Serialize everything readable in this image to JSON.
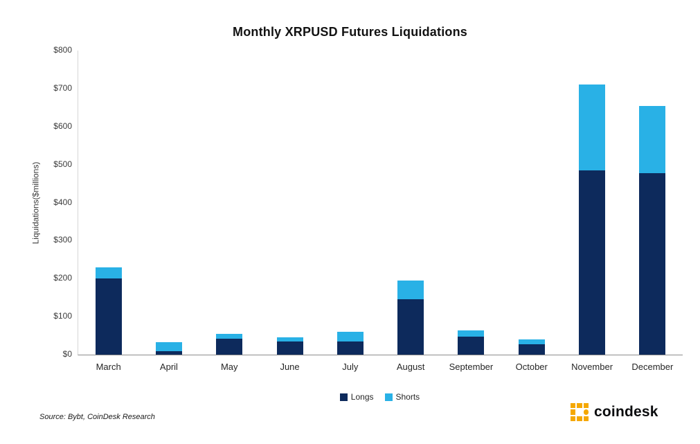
{
  "chart_data": {
    "type": "bar",
    "stacked": true,
    "title": "Monthly XRPUSD Futures Liquidations",
    "ylabel": "Liquidations($millions)",
    "categories": [
      "March",
      "April",
      "May",
      "June",
      "July",
      "August",
      "September",
      "October",
      "November",
      "December"
    ],
    "series": [
      {
        "name": "Longs",
        "color": "#0d2a5c",
        "values": [
          200,
          10,
          42,
          35,
          35,
          145,
          47,
          28,
          485,
          477
        ]
      },
      {
        "name": "Shorts",
        "color": "#29b1e6",
        "values": [
          30,
          22,
          13,
          10,
          25,
          50,
          16,
          12,
          225,
          178
        ]
      }
    ],
    "ylim": [
      0,
      800
    ],
    "ytick_step": 100,
    "ytick_labels": [
      "$0",
      "$100",
      "$200",
      "$300",
      "$400",
      "$500",
      "$600",
      "$700",
      "$800"
    ],
    "legend_position": "bottom",
    "grid": false
  },
  "footer": {
    "source": "Source: Bybt, CoinDesk Research"
  },
  "brand": {
    "text": "coindesk"
  }
}
